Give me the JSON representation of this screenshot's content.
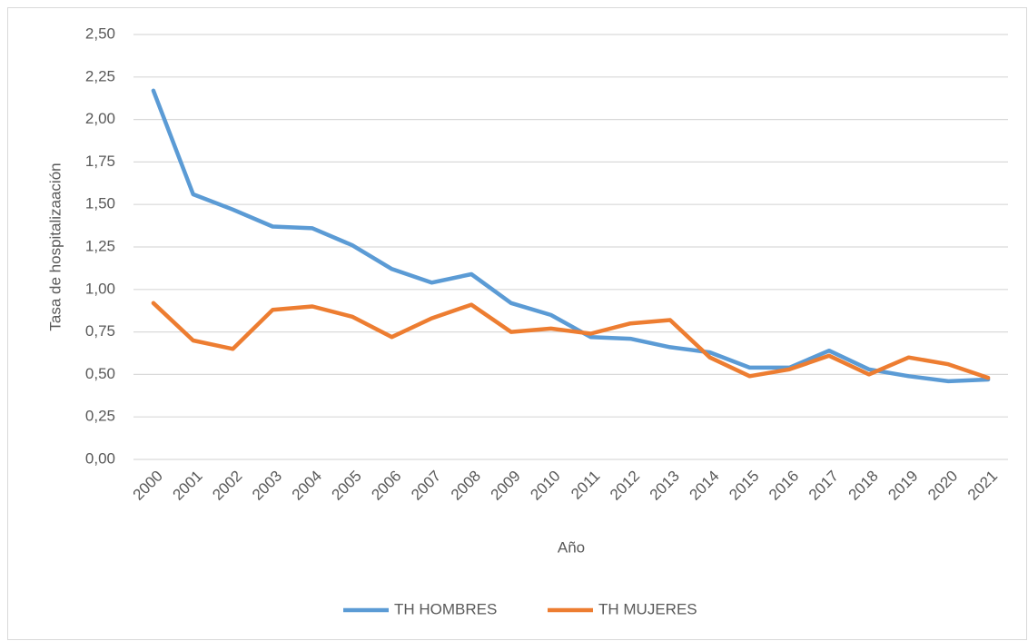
{
  "chart_data": {
    "type": "line",
    "x_label": "Año",
    "y_label": "Tasa de hospitalizaación",
    "categories": [
      "2000",
      "2001",
      "2002",
      "2003",
      "2004",
      "2005",
      "2006",
      "2007",
      "2008",
      "2009",
      "2010",
      "2011",
      "2012",
      "2013",
      "2014",
      "2015",
      "2016",
      "2017",
      "2018",
      "2019",
      "2020",
      "2021"
    ],
    "series": [
      {
        "name": "TH HOMBRES",
        "color": "#5b9bd5",
        "values": [
          2.17,
          1.56,
          1.47,
          1.37,
          1.36,
          1.26,
          1.12,
          1.04,
          1.09,
          0.92,
          0.85,
          0.72,
          0.71,
          0.66,
          0.63,
          0.54,
          0.54,
          0.64,
          0.53,
          0.49,
          0.46,
          0.47
        ]
      },
      {
        "name": "TH MUJERES",
        "color": "#ed7d31",
        "values": [
          0.92,
          0.7,
          0.65,
          0.88,
          0.9,
          0.84,
          0.72,
          0.83,
          0.91,
          0.75,
          0.77,
          0.74,
          0.8,
          0.82,
          0.6,
          0.49,
          0.53,
          0.61,
          0.5,
          0.6,
          0.56,
          0.48
        ]
      }
    ],
    "ylim": [
      0,
      2.5
    ],
    "yticks": [
      {
        "value": 0,
        "label": "0,00"
      },
      {
        "value": 0.25,
        "label": "0,25"
      },
      {
        "value": 0.5,
        "label": "0,50"
      },
      {
        "value": 0.75,
        "label": "0,75"
      },
      {
        "value": 1,
        "label": "1,00"
      },
      {
        "value": 1.25,
        "label": "1,25"
      },
      {
        "value": 1.5,
        "label": "1,50"
      },
      {
        "value": 1.75,
        "label": "1,75"
      },
      {
        "value": 2,
        "label": "2,00"
      },
      {
        "value": 2.25,
        "label": "2,25"
      },
      {
        "value": 2.5,
        "label": "2,50"
      }
    ],
    "grid": true,
    "legend": "bottom"
  }
}
